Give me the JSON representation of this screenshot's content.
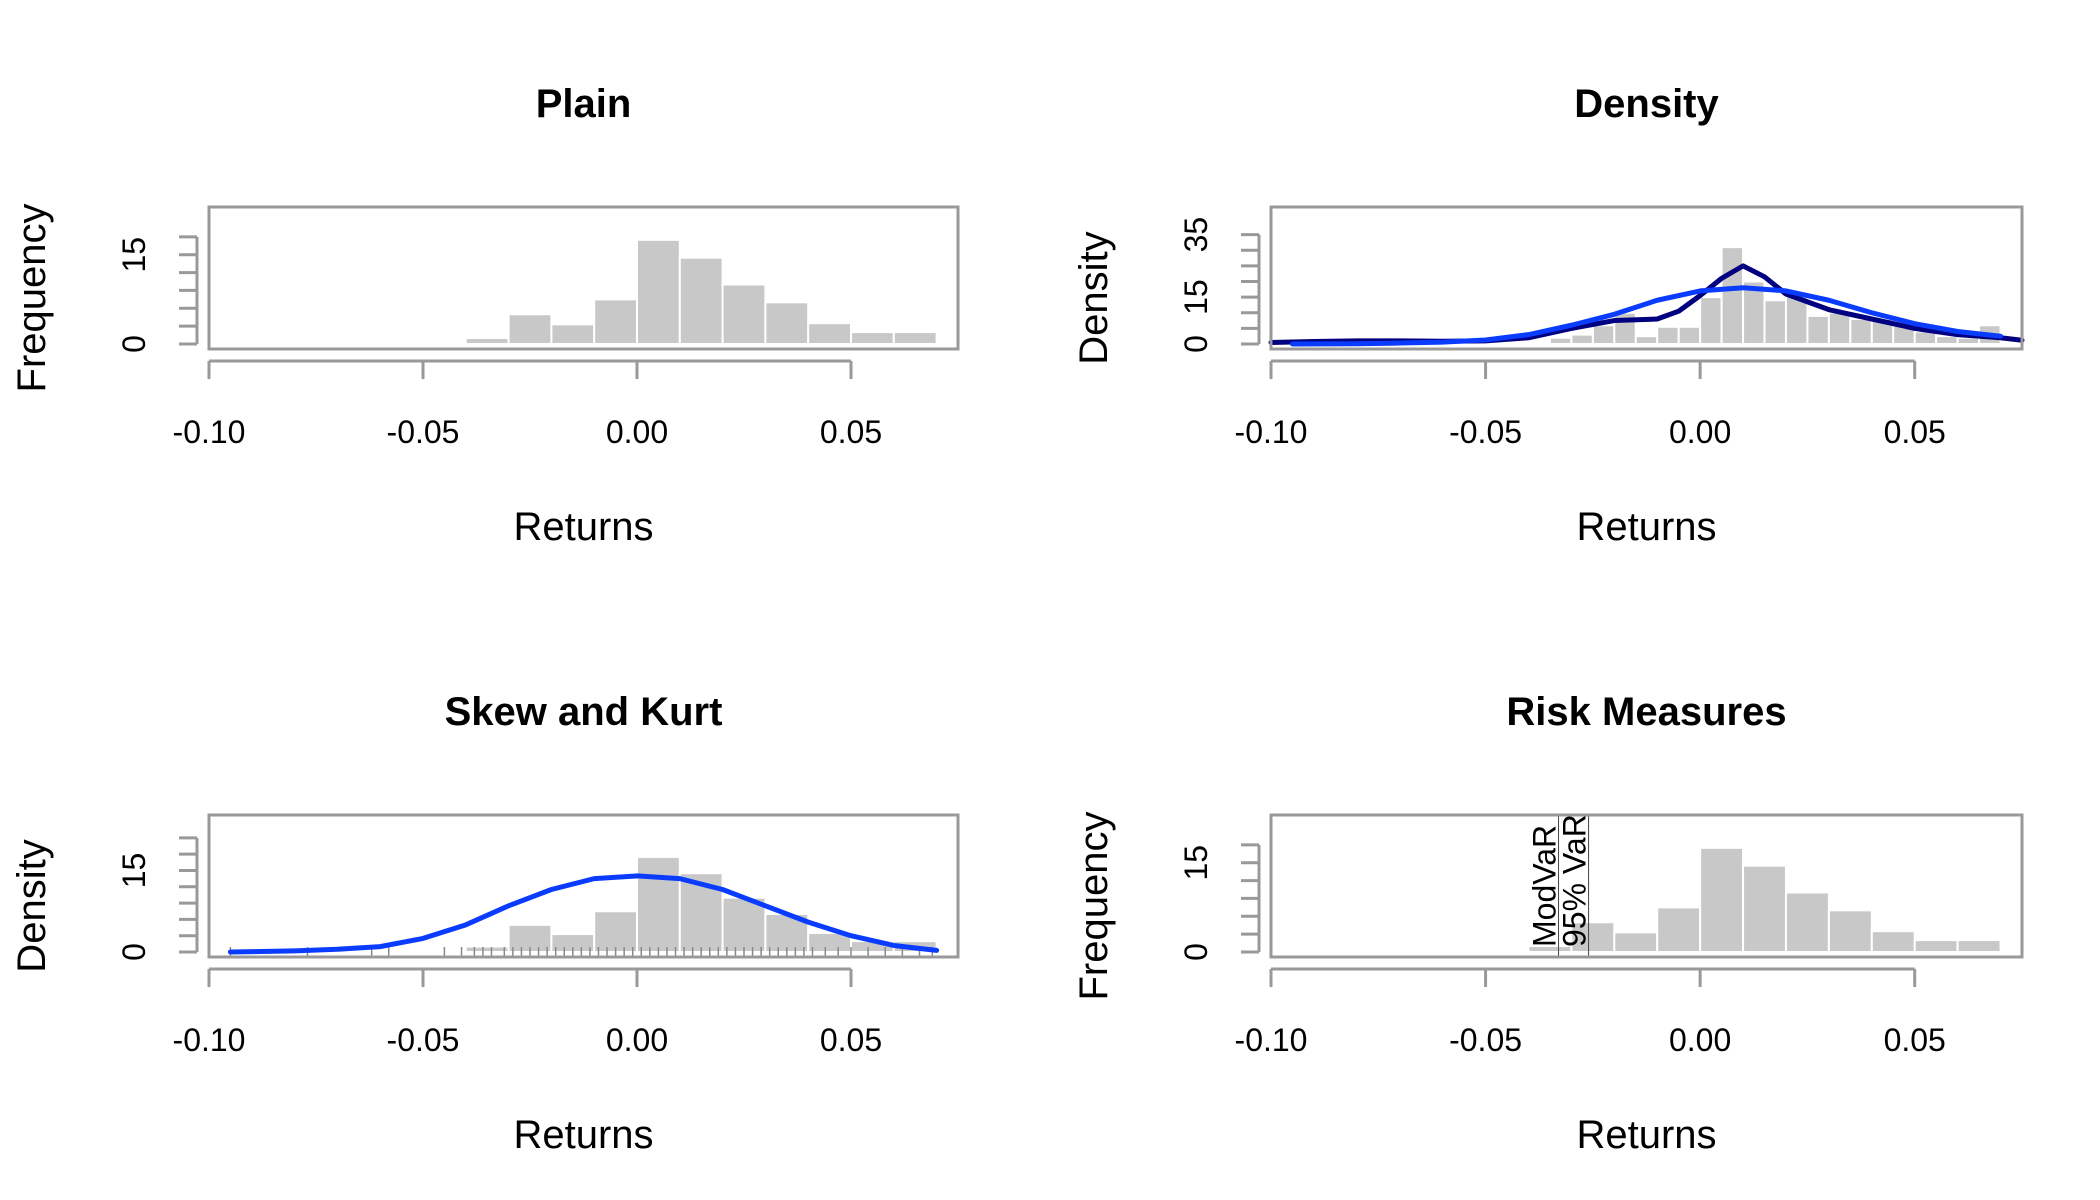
{
  "chart_data": [
    {
      "type": "bar",
      "title": "Plain",
      "xlabel": "Returns",
      "ylabel": "Frequency",
      "xlim": [
        -0.1,
        0.075
      ],
      "ylim": [
        0,
        21
      ],
      "x_ticks": [
        -0.1,
        -0.05,
        0.0,
        0.05
      ],
      "x_tick_labels": [
        "-0.10",
        "-0.05",
        "0.00",
        "0.05"
      ],
      "y_ticks": [
        0,
        3,
        6,
        9,
        12,
        15,
        18
      ],
      "y_tick_labels": [
        "0",
        "",
        "",
        "",
        "",
        "15",
        ""
      ],
      "bin_edges": [
        -0.1,
        -0.09,
        -0.08,
        -0.07,
        -0.06,
        -0.05,
        -0.04,
        -0.03,
        -0.02,
        -0.01,
        0.0,
        0.01,
        0.02,
        0.03,
        0.04,
        0.05,
        0.06,
        0.07
      ],
      "values": [
        0.3,
        0,
        0.3,
        0,
        0.3,
        0.3,
        1,
        5,
        3.3,
        7.5,
        17.5,
        14.5,
        10,
        7,
        3.5,
        2,
        2
      ],
      "bar_color": "#c8c8c8",
      "frame_color": "#999999"
    },
    {
      "type": "bar",
      "title": "Density",
      "xlabel": "Returns",
      "ylabel": "Density",
      "xlim": [
        -0.1,
        0.075
      ],
      "ylim": [
        0,
        40
      ],
      "x_ticks": [
        -0.1,
        -0.05,
        0.0,
        0.05
      ],
      "x_tick_labels": [
        "-0.10",
        "-0.05",
        "0.00",
        "0.05"
      ],
      "y_ticks": [
        0,
        5,
        10,
        15,
        20,
        25,
        30,
        35
      ],
      "y_tick_labels": [
        "0",
        "",
        "",
        "15",
        "",
        "",
        "",
        "35"
      ],
      "bin_edges": [
        -0.1,
        -0.095,
        -0.09,
        -0.085,
        -0.08,
        -0.075,
        -0.07,
        -0.065,
        -0.06,
        -0.055,
        -0.05,
        -0.045,
        -0.04,
        -0.035,
        -0.03,
        -0.025,
        -0.02,
        -0.015,
        -0.01,
        -0.005,
        0.0,
        0.005,
        0.01,
        0.015,
        0.02,
        0.025,
        0.03,
        0.035,
        0.04,
        0.045,
        0.05,
        0.055,
        0.06,
        0.065,
        0.07
      ],
      "values": [
        0,
        0.3,
        0,
        0,
        0,
        0.3,
        0,
        0,
        0.3,
        0,
        0.3,
        0,
        0,
        2,
        3,
        6,
        10,
        2.5,
        5.5,
        5.5,
        15,
        31,
        20,
        14,
        16,
        9,
        10,
        8,
        8,
        6,
        4,
        2.5,
        2,
        6,
        0
      ],
      "series": [
        {
          "name": "",
          "type": "line",
          "color": "#000080",
          "x": [
            -0.1,
            -0.09,
            -0.08,
            -0.07,
            -0.06,
            -0.05,
            -0.04,
            -0.03,
            -0.02,
            -0.01,
            -0.005,
            0.0,
            0.005,
            0.01,
            0.015,
            0.02,
            0.03,
            0.04,
            0.05,
            0.06,
            0.07,
            0.075
          ],
          "values": [
            0.5,
            0.8,
            1.0,
            1.0,
            0.9,
            1.0,
            2.0,
            5.0,
            7.5,
            8.0,
            10.5,
            15.5,
            21.0,
            25.0,
            21.5,
            16.0,
            11.0,
            8.0,
            5.0,
            3.0,
            2.0,
            1.2
          ]
        },
        {
          "name": "",
          "type": "line",
          "color": "#0a3cff",
          "x": [
            -0.095,
            -0.08,
            -0.07,
            -0.06,
            -0.05,
            -0.04,
            -0.03,
            -0.02,
            -0.01,
            0.0,
            0.01,
            0.02,
            0.03,
            0.04,
            0.05,
            0.06,
            0.07
          ],
          "values": [
            0.0,
            0.1,
            0.3,
            0.6,
            1.3,
            3.0,
            6.0,
            9.5,
            14.0,
            17.0,
            18.0,
            17.0,
            14.0,
            10.0,
            6.5,
            4.0,
            2.5
          ]
        }
      ],
      "bar_color": "#c8c8c8",
      "frame_color": "#999999"
    },
    {
      "type": "bar",
      "title": "Skew and Kurt",
      "xlabel": "Returns",
      "ylabel": "Density",
      "xlim": [
        -0.1,
        0.075
      ],
      "ylim": [
        0,
        23
      ],
      "x_ticks": [
        -0.1,
        -0.05,
        0.0,
        0.05
      ],
      "x_tick_labels": [
        "-0.10",
        "-0.05",
        "0.00",
        "0.05"
      ],
      "y_ticks": [
        0,
        3,
        6,
        9,
        12,
        15,
        18,
        21
      ],
      "y_tick_labels": [
        "0",
        "",
        "",
        "",
        "",
        "15",
        "",
        ""
      ],
      "bin_edges": [
        -0.1,
        -0.09,
        -0.08,
        -0.07,
        -0.06,
        -0.05,
        -0.04,
        -0.03,
        -0.02,
        -0.01,
        0.0,
        0.01,
        0.02,
        0.03,
        0.04,
        0.05,
        0.06,
        0.07
      ],
      "values": [
        0.3,
        0,
        0.3,
        0,
        0.3,
        0.3,
        1,
        5,
        3.3,
        7.5,
        17.5,
        14.5,
        10,
        7,
        3.5,
        2,
        2
      ],
      "series": [
        {
          "name": "",
          "type": "line",
          "color": "#0a3cff",
          "x": [
            -0.095,
            -0.08,
            -0.07,
            -0.06,
            -0.05,
            -0.04,
            -0.03,
            -0.02,
            -0.01,
            0.0,
            0.01,
            0.02,
            0.03,
            0.04,
            0.05,
            0.06,
            0.07
          ],
          "values": [
            0.0,
            0.2,
            0.5,
            1.0,
            2.5,
            5.0,
            8.5,
            11.5,
            13.5,
            14.0,
            13.5,
            11.5,
            8.5,
            5.5,
            3.0,
            1.2,
            0.3
          ]
        }
      ],
      "rug": [
        -0.095,
        -0.077,
        -0.062,
        -0.058,
        -0.045,
        -0.041,
        -0.038,
        -0.036,
        -0.034,
        -0.031,
        -0.029,
        -0.027,
        -0.025,
        -0.023,
        -0.021,
        -0.019,
        -0.017,
        -0.015,
        -0.013,
        -0.011,
        -0.009,
        -0.007,
        -0.005,
        -0.003,
        -0.001,
        0.001,
        0.003,
        0.005,
        0.007,
        0.009,
        0.011,
        0.013,
        0.015,
        0.017,
        0.019,
        0.021,
        0.023,
        0.025,
        0.027,
        0.029,
        0.031,
        0.033,
        0.035,
        0.037,
        0.039,
        0.041,
        0.044,
        0.047,
        0.05,
        0.054,
        0.058,
        0.062,
        0.066,
        0.069
      ],
      "bar_color": "#c8c8c8",
      "frame_color": "#999999"
    },
    {
      "type": "bar",
      "title": "Risk Measures",
      "xlabel": "Returns",
      "ylabel": "Frequency",
      "xlim": [
        -0.1,
        0.075
      ],
      "ylim": [
        0,
        21
      ],
      "x_ticks": [
        -0.1,
        -0.05,
        0.0,
        0.05
      ],
      "x_tick_labels": [
        "-0.10",
        "-0.05",
        "0.00",
        "0.05"
      ],
      "y_ticks": [
        0,
        3,
        6,
        9,
        12,
        15,
        18
      ],
      "y_tick_labels": [
        "0",
        "",
        "",
        "",
        "",
        "15",
        ""
      ],
      "bin_edges": [
        -0.1,
        -0.09,
        -0.08,
        -0.07,
        -0.06,
        -0.05,
        -0.04,
        -0.03,
        -0.02,
        -0.01,
        0.0,
        0.01,
        0.02,
        0.03,
        0.04,
        0.05,
        0.06,
        0.07
      ],
      "values": [
        0.3,
        0,
        0.3,
        0,
        0.3,
        0.3,
        1,
        5,
        3.3,
        7.5,
        17.5,
        14.5,
        10,
        7,
        3.5,
        2,
        2
      ],
      "annotations": [
        {
          "label": "ModVaR",
          "x": -0.033
        },
        {
          "label": "95% VaR",
          "x": -0.026
        }
      ],
      "bar_color": "#c8c8c8",
      "frame_color": "#999999"
    }
  ]
}
